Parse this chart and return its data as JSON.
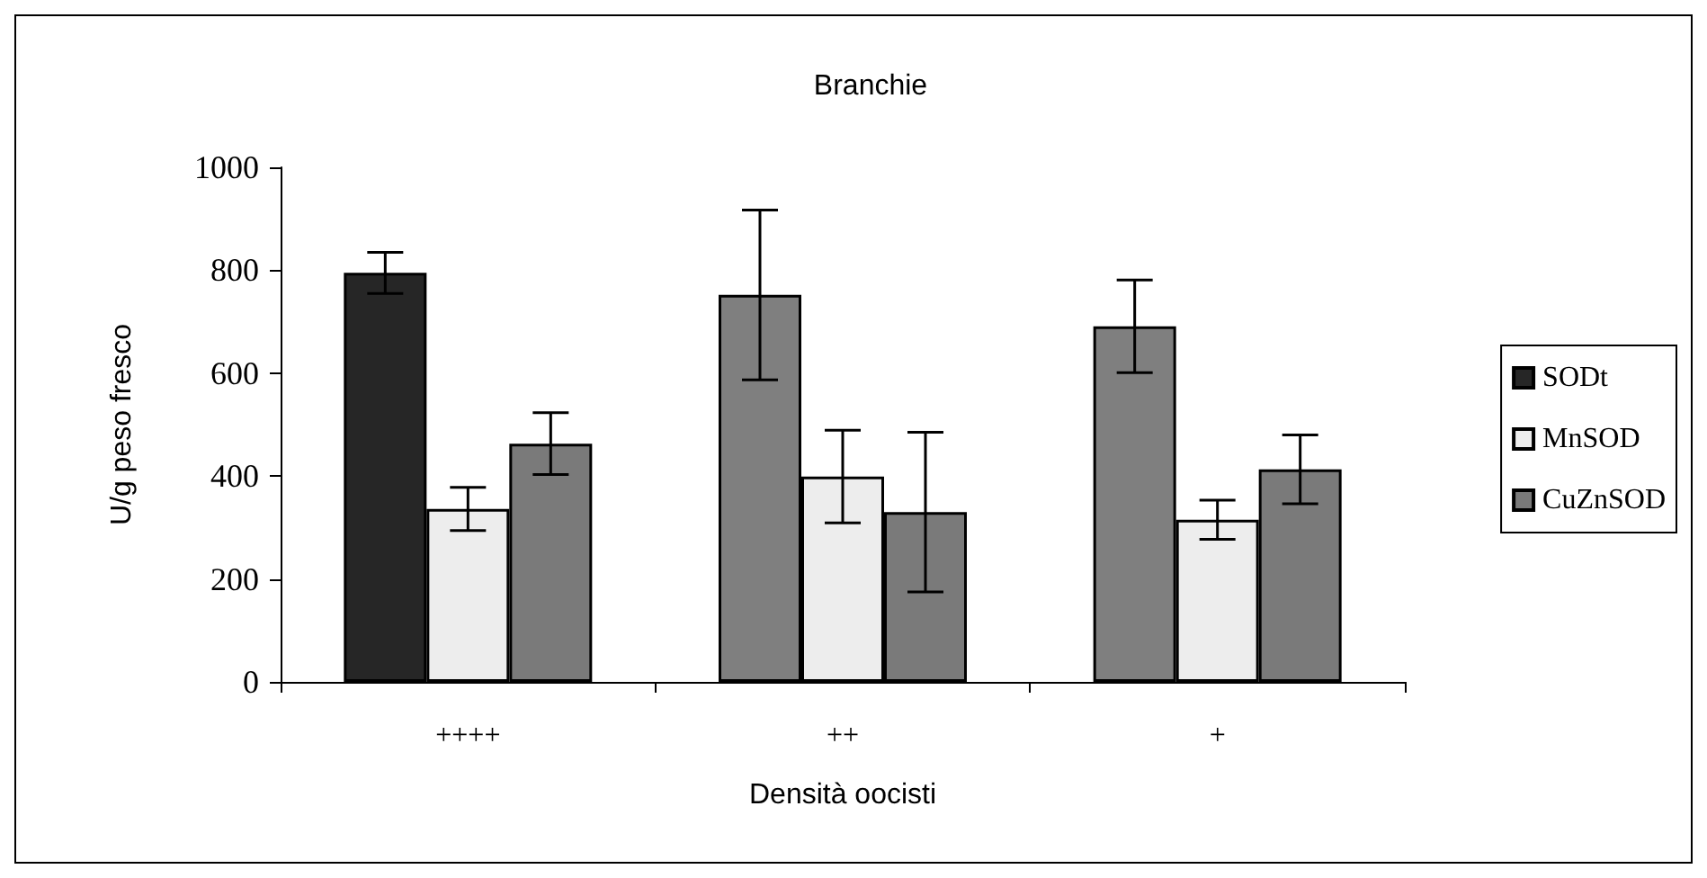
{
  "chart_data": {
    "type": "bar",
    "title": "Branchie",
    "xlabel": "Densità oocisti",
    "ylabel": "U/g peso fresco",
    "categories": [
      "++++",
      "++",
      "+"
    ],
    "series": [
      {
        "name": "SODt",
        "color": "#262626",
        "colors": [
          "#262626",
          "#7f7f7f",
          "#7f7f7f"
        ],
        "values": [
          795,
          752,
          691
        ],
        "errors": [
          40,
          165,
          90
        ]
      },
      {
        "name": "MnSOD",
        "color": "#ededed",
        "values": [
          336,
          399,
          315
        ],
        "errors": [
          42,
          90,
          38
        ]
      },
      {
        "name": "CuZnSOD",
        "color": "#7a7a7a",
        "values": [
          463,
          330,
          413
        ],
        "errors": [
          60,
          155,
          67
        ]
      }
    ],
    "ylim": [
      0,
      1000
    ],
    "yticks": [
      0,
      200,
      400,
      600,
      800,
      1000
    ],
    "grid": false,
    "legend": "right"
  }
}
